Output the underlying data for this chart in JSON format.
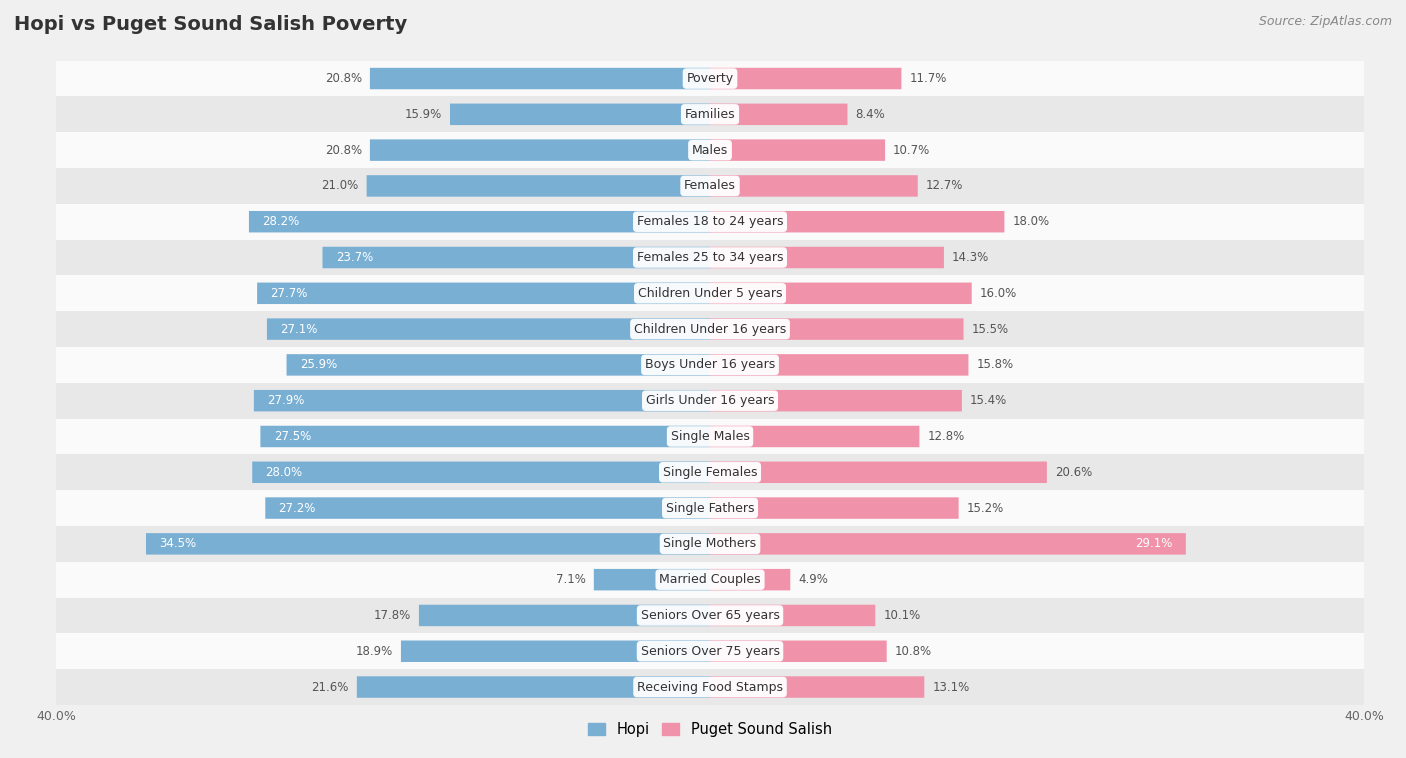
{
  "title": "Hopi vs Puget Sound Salish Poverty",
  "source": "Source: ZipAtlas.com",
  "categories": [
    "Poverty",
    "Families",
    "Males",
    "Females",
    "Females 18 to 24 years",
    "Females 25 to 34 years",
    "Children Under 5 years",
    "Children Under 16 years",
    "Boys Under 16 years",
    "Girls Under 16 years",
    "Single Males",
    "Single Females",
    "Single Fathers",
    "Single Mothers",
    "Married Couples",
    "Seniors Over 65 years",
    "Seniors Over 75 years",
    "Receiving Food Stamps"
  ],
  "hopi_values": [
    20.8,
    15.9,
    20.8,
    21.0,
    28.2,
    23.7,
    27.7,
    27.1,
    25.9,
    27.9,
    27.5,
    28.0,
    27.2,
    34.5,
    7.1,
    17.8,
    18.9,
    21.6
  ],
  "salish_values": [
    11.7,
    8.4,
    10.7,
    12.7,
    18.0,
    14.3,
    16.0,
    15.5,
    15.8,
    15.4,
    12.8,
    20.6,
    15.2,
    29.1,
    4.9,
    10.1,
    10.8,
    13.1
  ],
  "hopi_color": "#7aafd4",
  "salish_color": "#f093aa",
  "background_color": "#f0f0f0",
  "row_light_color": "#fafafa",
  "row_dark_color": "#e8e8e8",
  "axis_limit": 40.0,
  "legend_labels": [
    "Hopi",
    "Puget Sound Salish"
  ],
  "bar_height": 0.58,
  "inside_label_threshold": 22.0,
  "title_fontsize": 14,
  "source_fontsize": 9,
  "cat_fontsize": 9,
  "val_fontsize": 8.5
}
